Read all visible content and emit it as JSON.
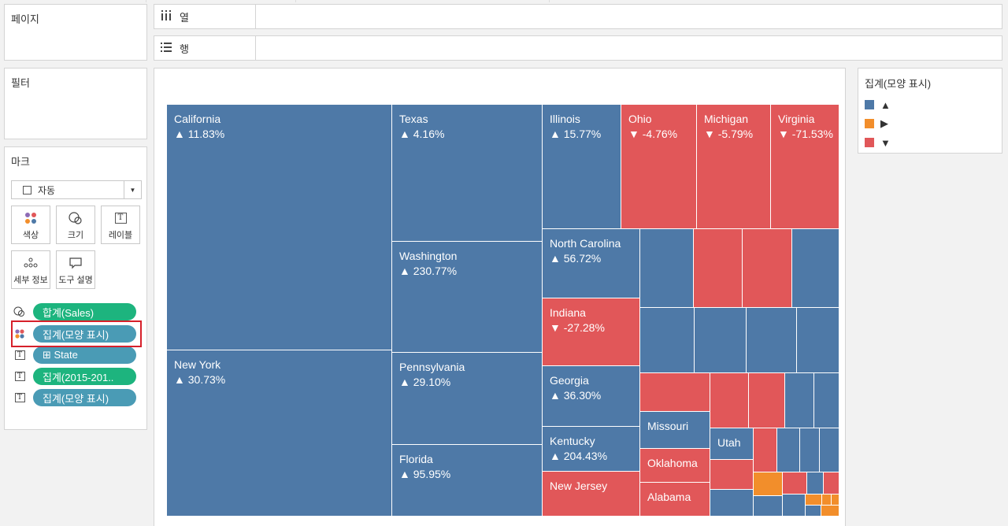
{
  "pages_panel": {
    "title": "페이지"
  },
  "filters_panel": {
    "title": "필터"
  },
  "shelves": {
    "columns": {
      "icon": "columns-icon",
      "label": "열"
    },
    "rows": {
      "icon": "rows-icon",
      "label": "행"
    }
  },
  "marks": {
    "title": "마크",
    "mark_type": "자동",
    "buttons": {
      "color": "색상",
      "size": "크기",
      "label": "레이블",
      "detail": "세부 정보",
      "tooltip": "도구 설명"
    },
    "pills": [
      {
        "icon": "size-icon",
        "text": "합계(Sales)",
        "color": "green"
      },
      {
        "icon": "color-icon",
        "text": "집계(모양 표시)",
        "color": "blue"
      },
      {
        "icon": "text-icon",
        "text": "⊞ State",
        "color": "blue"
      },
      {
        "icon": "text-icon",
        "text": "집계(2015-201..",
        "color": "green"
      },
      {
        "icon": "text-icon",
        "text": "집계(모양 표시)",
        "color": "blue"
      }
    ]
  },
  "legend": {
    "title": "집계(모양 표시)",
    "items": [
      {
        "symbol": "▲",
        "color": "#4e79a7"
      },
      {
        "symbol": "▶",
        "color": "#f28e2b"
      },
      {
        "symbol": "▼",
        "color": "#e15759"
      }
    ]
  },
  "colors": {
    "up": "#4e79a7",
    "down": "#e15759",
    "flat": "#f28e2b",
    "pill_green": "#1db47e",
    "pill_blue": "#4a9bb5"
  },
  "chart_data": {
    "type": "treemap",
    "size_measure": "합계(Sales)",
    "color_measure": "집계(모양 표시)",
    "labeled_states": [
      {
        "name": "California",
        "change": "▲ 11.83%",
        "direction": "up"
      },
      {
        "name": "New York",
        "change": "▲ 30.73%",
        "direction": "up"
      },
      {
        "name": "Texas",
        "change": "▲ 4.16%",
        "direction": "up"
      },
      {
        "name": "Washington",
        "change": "▲ 230.77%",
        "direction": "up"
      },
      {
        "name": "Pennsylvania",
        "change": "▲ 29.10%",
        "direction": "up"
      },
      {
        "name": "Florida",
        "change": "▲ 95.95%",
        "direction": "up"
      },
      {
        "name": "Illinois",
        "change": "▲ 15.77%",
        "direction": "up"
      },
      {
        "name": "Ohio",
        "change": "▼ -4.76%",
        "direction": "down"
      },
      {
        "name": "Michigan",
        "change": "▼ -5.79%",
        "direction": "down"
      },
      {
        "name": "Virginia",
        "change": "▼ -71.53%",
        "direction": "down"
      },
      {
        "name": "North Carolina",
        "change": "▲ 56.72%",
        "direction": "up"
      },
      {
        "name": "Indiana",
        "change": "▼ -27.28%",
        "direction": "down"
      },
      {
        "name": "Georgia",
        "change": "▲ 36.30%",
        "direction": "up"
      },
      {
        "name": "Kentucky",
        "change": "▲ 204.43%",
        "direction": "up"
      },
      {
        "name": "New Jersey",
        "change": "",
        "direction": "down"
      },
      {
        "name": "Missouri",
        "change": "",
        "direction": "up"
      },
      {
        "name": "Oklahoma",
        "change": "",
        "direction": "down"
      },
      {
        "name": "Alabama",
        "change": "",
        "direction": "down"
      },
      {
        "name": "Utah",
        "change": "",
        "direction": "up"
      }
    ]
  }
}
